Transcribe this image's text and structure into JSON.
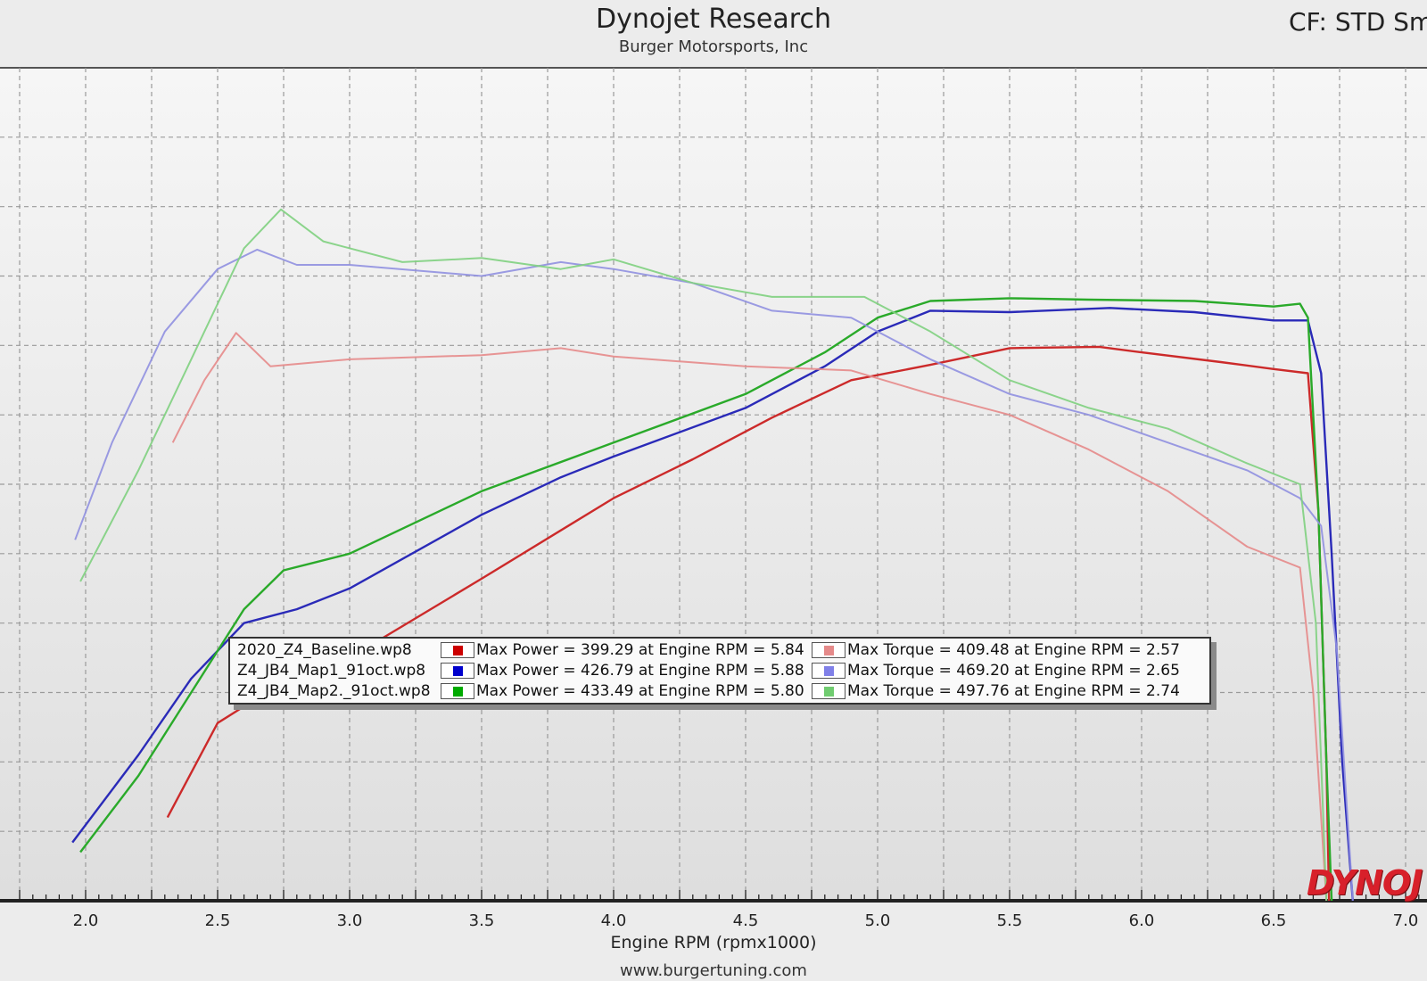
{
  "header": {
    "title": "Dynojet Research",
    "subtitle": "Burger Motorsports, Inc",
    "cf": "CF: STD Sm"
  },
  "footer": {
    "website": "www.burgertuning.com",
    "logo_text": "DYNOJ"
  },
  "colors": {
    "baseline": "#cc2a2a",
    "map1": "#2a2ab8",
    "map2": "#2aaa2a",
    "baseline_torque": "#e58a8a",
    "map1_torque": "#9090e0",
    "map2_torque": "#80d080",
    "grid": "#9a9a9a"
  },
  "legend": [
    {
      "file": "2020_Z4_Baseline.wp8",
      "power": "Max Power = 399.29 at Engine RPM = 5.84",
      "torque": "Max Torque = 409.48 at Engine RPM = 2.57",
      "power_color": "#cc0000",
      "torque_color": "#e58a8a"
    },
    {
      "file": "Z4_JB4_Map1_91oct.wp8",
      "power": "Max Power = 426.79 at Engine RPM = 5.88",
      "torque": "Max Torque = 469.20 at Engine RPM = 2.65",
      "power_color": "#0000cc",
      "torque_color": "#8080e8"
    },
    {
      "file": "Z4_JB4_Map2._91oct.wp8",
      "power": "Max Power = 433.49 at Engine RPM = 5.80",
      "torque": "Max Torque = 497.76 at Engine RPM = 2.74",
      "power_color": "#00aa00",
      "torque_color": "#70cc70"
    }
  ],
  "chart_data": {
    "type": "line",
    "title": "Dynojet Research",
    "subtitle": "Burger Motorsports, Inc",
    "xlabel": "Engine RPM (rpmx1000)",
    "ylabel": "",
    "x_ticks": [
      "2.0",
      "2.5",
      "3.0",
      "3.5",
      "4.0",
      "4.5",
      "5.0",
      "5.5",
      "6.0",
      "6.5",
      "7.0"
    ],
    "xlim": [
      1.7,
      7.05
    ],
    "ylim": [
      0,
      600
    ],
    "grid": true,
    "series": [
      {
        "name": "2020_Z4_Baseline.wp8 Power",
        "key": "baseline",
        "x": [
          2.31,
          2.5,
          2.6,
          2.7,
          3.0,
          3.5,
          4.0,
          4.3,
          4.6,
          4.9,
          5.2,
          5.5,
          5.84,
          6.0,
          6.3,
          6.5,
          6.63,
          6.67,
          6.7,
          6.71
        ],
        "y": [
          60,
          128,
          140,
          140,
          175,
          232,
          290,
          318,
          348,
          375,
          386,
          398,
          399,
          395,
          388,
          383,
          380,
          280,
          100,
          0
        ]
      },
      {
        "name": "Z4_JB4_Map1_91oct.wp8 Power",
        "key": "map1",
        "x": [
          1.95,
          2.2,
          2.4,
          2.6,
          2.8,
          3.0,
          3.5,
          3.8,
          4.0,
          4.5,
          4.8,
          5.0,
          5.2,
          5.5,
          5.88,
          6.2,
          6.5,
          6.63,
          6.68,
          6.72,
          6.76,
          6.8
        ],
        "y": [
          42,
          105,
          160,
          200,
          210,
          225,
          278,
          305,
          320,
          355,
          385,
          410,
          425,
          424,
          427,
          424,
          418,
          418,
          380,
          250,
          100,
          0
        ]
      },
      {
        "name": "Z4_JB4_Map2._91oct.wp8 Power",
        "key": "map2",
        "x": [
          1.98,
          2.2,
          2.4,
          2.6,
          2.75,
          3.0,
          3.5,
          4.0,
          4.5,
          4.8,
          5.0,
          5.2,
          5.5,
          5.8,
          6.2,
          6.5,
          6.6,
          6.63,
          6.67,
          6.7,
          6.72
        ],
        "y": [
          35,
          90,
          150,
          210,
          238,
          250,
          295,
          330,
          365,
          395,
          420,
          432,
          434,
          433,
          432,
          428,
          430,
          420,
          280,
          100,
          0
        ]
      },
      {
        "name": "2020_Z4_Baseline.wp8 Torque",
        "key": "baseline_torque",
        "x": [
          2.33,
          2.45,
          2.57,
          2.7,
          3.0,
          3.5,
          3.8,
          4.0,
          4.5,
          4.9,
          5.2,
          5.5,
          5.8,
          6.1,
          6.4,
          6.6,
          6.65,
          6.7
        ],
        "y": [
          330,
          375,
          409,
          385,
          390,
          393,
          398,
          392,
          385,
          382,
          365,
          350,
          325,
          295,
          255,
          240,
          150,
          0
        ]
      },
      {
        "name": "Z4_JB4_Map1_91oct.wp8 Torque",
        "key": "map1_torque",
        "x": [
          1.96,
          2.1,
          2.3,
          2.5,
          2.65,
          2.8,
          3.0,
          3.5,
          3.8,
          4.0,
          4.3,
          4.6,
          4.9,
          5.2,
          5.5,
          5.8,
          6.1,
          6.4,
          6.6,
          6.68,
          6.74,
          6.8
        ],
        "y": [
          260,
          330,
          410,
          455,
          469,
          458,
          458,
          450,
          460,
          455,
          445,
          425,
          420,
          390,
          365,
          350,
          330,
          310,
          290,
          270,
          180,
          0
        ]
      },
      {
        "name": "Z4_JB4_Map2._91oct.wp8 Torque",
        "key": "map2_torque",
        "x": [
          1.98,
          2.2,
          2.4,
          2.6,
          2.74,
          2.9,
          3.2,
          3.5,
          3.8,
          4.0,
          4.3,
          4.6,
          4.95,
          5.2,
          5.5,
          5.8,
          6.1,
          6.4,
          6.6,
          6.66,
          6.7
        ],
        "y": [
          230,
          310,
          390,
          470,
          498,
          475,
          460,
          463,
          455,
          462,
          445,
          435,
          435,
          410,
          375,
          355,
          340,
          315,
          300,
          200,
          0
        ]
      }
    ]
  }
}
